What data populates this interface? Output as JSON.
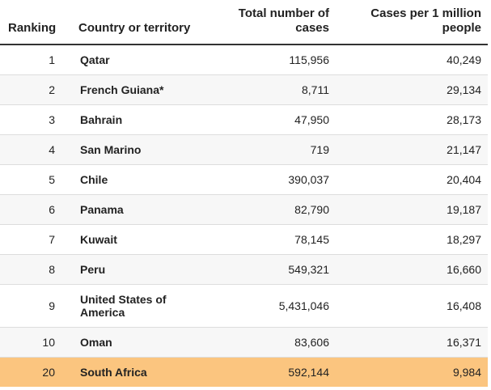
{
  "chart_data": {
    "type": "table",
    "columns": [
      "Ranking",
      "Country or territory",
      "Total number of cases",
      "Cases per 1 million people"
    ],
    "rows": [
      {
        "rank": "1",
        "country": "Qatar",
        "total": "115,956",
        "per_million": "40,249"
      },
      {
        "rank": "2",
        "country": "French Guiana*",
        "total": "8,711",
        "per_million": "29,134"
      },
      {
        "rank": "3",
        "country": "Bahrain",
        "total": "47,950",
        "per_million": "28,173"
      },
      {
        "rank": "4",
        "country": "San Marino",
        "total": "719",
        "per_million": "21,147"
      },
      {
        "rank": "5",
        "country": "Chile",
        "total": "390,037",
        "per_million": "20,404"
      },
      {
        "rank": "6",
        "country": "Panama",
        "total": "82,790",
        "per_million": "19,187"
      },
      {
        "rank": "7",
        "country": "Kuwait",
        "total": "78,145",
        "per_million": "18,297"
      },
      {
        "rank": "8",
        "country": "Peru",
        "total": "549,321",
        "per_million": "16,660"
      },
      {
        "rank": "9",
        "country": "United States of America",
        "total": "5,431,046",
        "per_million": "16,408"
      },
      {
        "rank": "10",
        "country": "Oman",
        "total": "83,606",
        "per_million": "16,371"
      },
      {
        "rank": "20",
        "country": "South Africa",
        "total": "592,144",
        "per_million": "9,984"
      }
    ],
    "highlight_row": 10,
    "highlight_color": "#fbc57f",
    "alt_row_color": "#f7f7f7"
  }
}
